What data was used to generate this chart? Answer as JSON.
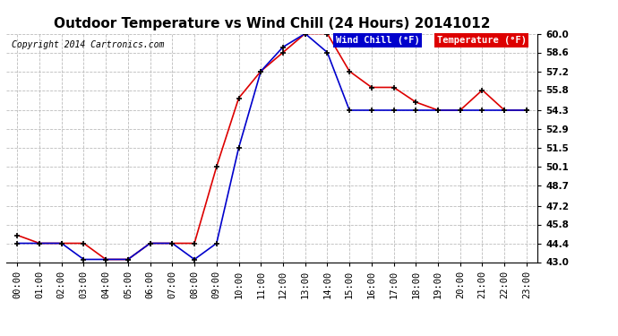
{
  "title": "Outdoor Temperature vs Wind Chill (24 Hours) 20141012",
  "copyright": "Copyright 2014 Cartronics.com",
  "legend_wind_chill": "Wind Chill (°F)",
  "legend_temperature": "Temperature (°F)",
  "hours": [
    0,
    1,
    2,
    3,
    4,
    5,
    6,
    7,
    8,
    9,
    10,
    11,
    12,
    13,
    14,
    15,
    16,
    17,
    18,
    19,
    20,
    21,
    22,
    23
  ],
  "temperature": [
    45.0,
    44.4,
    44.4,
    44.4,
    43.2,
    43.2,
    44.4,
    44.4,
    44.4,
    50.1,
    55.2,
    57.2,
    58.6,
    60.0,
    60.0,
    57.2,
    56.0,
    56.0,
    54.9,
    54.3,
    54.3,
    55.8,
    54.3,
    54.3
  ],
  "wind_chill": [
    44.4,
    44.4,
    44.4,
    43.2,
    43.2,
    43.2,
    44.4,
    44.4,
    43.2,
    44.4,
    51.5,
    57.2,
    59.0,
    60.0,
    58.6,
    54.3,
    54.3,
    54.3,
    54.3,
    54.3,
    54.3,
    54.3,
    54.3,
    54.3
  ],
  "ylim": [
    43.0,
    60.0
  ],
  "yticks": [
    43.0,
    44.4,
    45.8,
    47.2,
    48.7,
    50.1,
    51.5,
    52.9,
    54.3,
    55.8,
    57.2,
    58.6,
    60.0
  ],
  "background_color": "#ffffff",
  "grid_color": "#bbbbbb",
  "temp_color": "#dd0000",
  "wind_color": "#0000cc",
  "title_fontsize": 11,
  "copyright_fontsize": 7,
  "tick_fontsize": 7.5
}
